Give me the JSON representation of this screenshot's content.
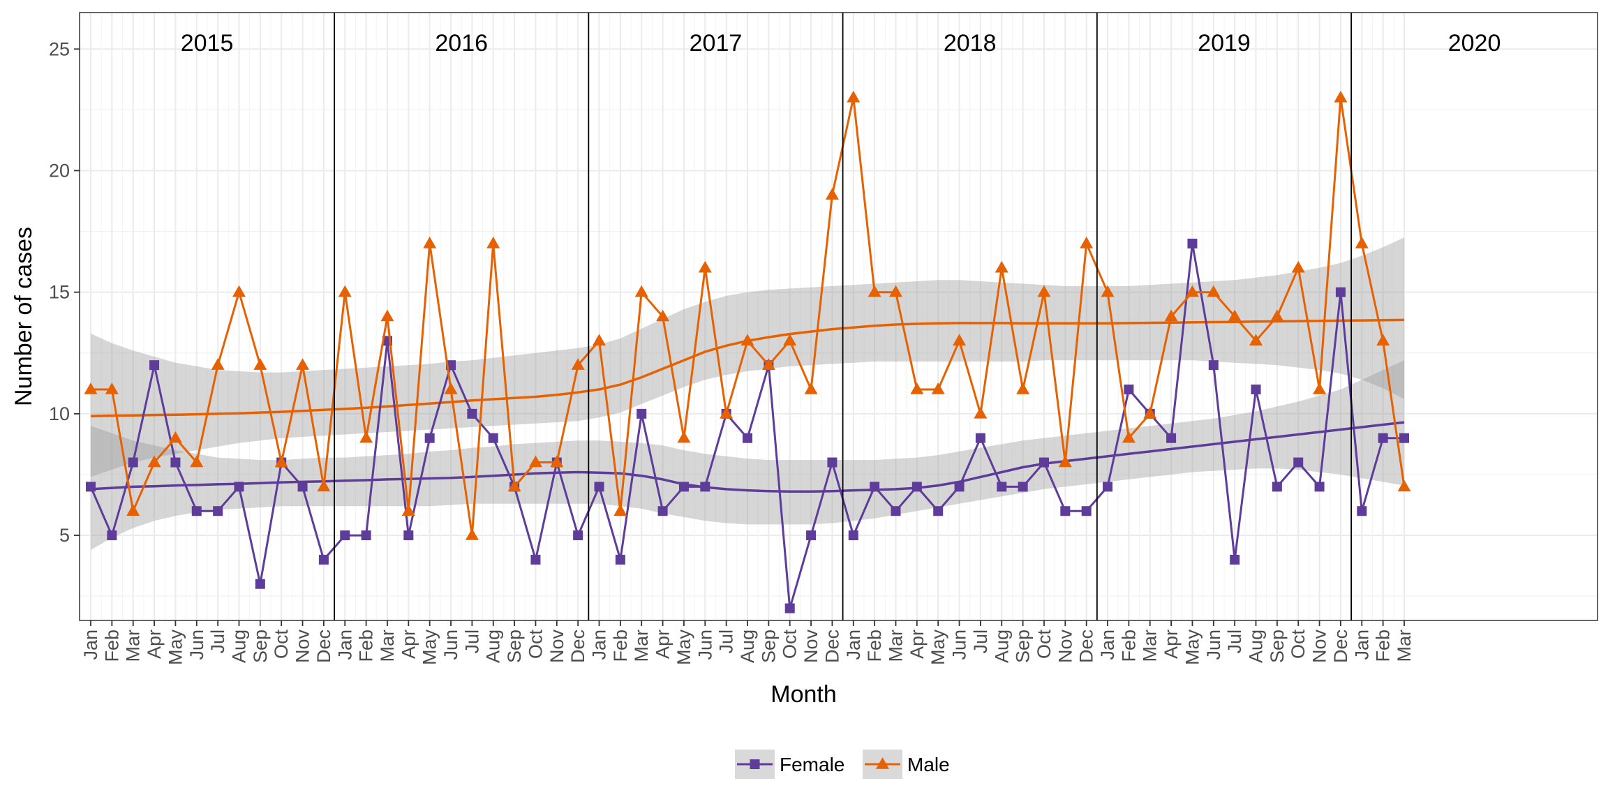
{
  "chart_data": {
    "type": "line",
    "title": "",
    "xlabel": "Month",
    "ylabel": "Number of cases",
    "ylim": [
      1.5,
      26.5
    ],
    "yticks": [
      5,
      10,
      15,
      20,
      25
    ],
    "grid": true,
    "legend_position": "bottom",
    "years": [
      {
        "label": "2015",
        "months": 12
      },
      {
        "label": "2016",
        "months": 12
      },
      {
        "label": "2017",
        "months": 12
      },
      {
        "label": "2018",
        "months": 12
      },
      {
        "label": "2019",
        "months": 12
      },
      {
        "label": "2020",
        "months": 3
      }
    ],
    "month_labels": [
      "Jan",
      "Feb",
      "Mar",
      "Apr",
      "May",
      "Jun",
      "Jul",
      "Aug",
      "Sep",
      "Oct",
      "Nov",
      "Dec"
    ],
    "categories": [
      "Jan",
      "Feb",
      "Mar",
      "Apr",
      "May",
      "Jun",
      "Jul",
      "Aug",
      "Sep",
      "Oct",
      "Nov",
      "Dec",
      "Jan",
      "Feb",
      "Mar",
      "Apr",
      "May",
      "Jun",
      "Jul",
      "Aug",
      "Sep",
      "Oct",
      "Nov",
      "Dec",
      "Jan",
      "Feb",
      "Mar",
      "Apr",
      "May",
      "Jun",
      "Jul",
      "Aug",
      "Sep",
      "Oct",
      "Nov",
      "Dec",
      "Jan",
      "Feb",
      "Mar",
      "Apr",
      "May",
      "Jun",
      "Jul",
      "Aug",
      "Sep",
      "Oct",
      "Nov",
      "Dec",
      "Jan",
      "Feb",
      "Mar",
      "Apr",
      "May",
      "Jun",
      "Jul",
      "Aug",
      "Sep",
      "Oct",
      "Nov",
      "Dec",
      "Jan",
      "Feb",
      "Mar"
    ],
    "series": [
      {
        "name": "Female",
        "color": "#5e3c99",
        "marker": "square",
        "values": [
          7,
          5,
          8,
          12,
          8,
          6,
          6,
          7,
          3,
          8,
          7,
          4,
          5,
          5,
          13,
          5,
          9,
          12,
          10,
          9,
          7,
          4,
          8,
          5,
          7,
          4,
          10,
          6,
          7,
          7,
          10,
          9,
          12,
          2,
          5,
          8,
          5,
          7,
          6,
          7,
          6,
          7,
          9,
          7,
          7,
          8,
          6,
          6,
          7,
          11,
          10,
          9,
          17,
          12,
          4,
          11,
          7,
          8,
          7,
          15,
          6,
          9,
          9
        ],
        "trend": [
          6.9,
          6.95,
          7.0,
          7.02,
          7.05,
          7.07,
          7.1,
          7.12,
          7.15,
          7.18,
          7.2,
          7.22,
          7.25,
          7.27,
          7.3,
          7.32,
          7.34,
          7.36,
          7.4,
          7.45,
          7.5,
          7.55,
          7.58,
          7.6,
          7.58,
          7.55,
          7.45,
          7.3,
          7.1,
          6.98,
          6.9,
          6.85,
          6.82,
          6.8,
          6.8,
          6.82,
          6.85,
          6.87,
          6.9,
          6.95,
          7.05,
          7.2,
          7.4,
          7.6,
          7.8,
          7.95,
          8.05,
          8.15,
          8.25,
          8.35,
          8.45,
          8.55,
          8.65,
          8.75,
          8.85,
          8.95,
          9.05,
          9.15,
          9.25,
          9.35,
          9.45,
          9.55,
          9.65
        ],
        "band_lower": [
          4.4,
          4.9,
          5.3,
          5.6,
          5.8,
          5.95,
          6.05,
          6.1,
          6.15,
          6.2,
          6.2,
          6.2,
          6.2,
          6.2,
          6.2,
          6.2,
          6.2,
          6.25,
          6.3,
          6.3,
          6.3,
          6.3,
          6.3,
          6.3,
          6.3,
          6.2,
          6.1,
          5.9,
          5.75,
          5.6,
          5.5,
          5.45,
          5.45,
          5.45,
          5.45,
          5.5,
          5.6,
          5.7,
          5.85,
          6.0,
          6.15,
          6.3,
          6.45,
          6.6,
          6.75,
          6.9,
          7.0,
          7.1,
          7.2,
          7.3,
          7.4,
          7.5,
          7.6,
          7.65,
          7.7,
          7.75,
          7.75,
          7.7,
          7.6,
          7.5,
          7.35,
          7.2,
          7.05
        ],
        "band_upper": [
          9.5,
          9.2,
          8.9,
          8.7,
          8.5,
          8.35,
          8.2,
          8.15,
          8.1,
          8.1,
          8.15,
          8.2,
          8.2,
          8.25,
          8.3,
          8.35,
          8.45,
          8.5,
          8.6,
          8.65,
          8.75,
          8.8,
          8.85,
          8.9,
          8.9,
          8.85,
          8.8,
          8.7,
          8.5,
          8.35,
          8.25,
          8.15,
          8.1,
          8.1,
          8.1,
          8.1,
          8.1,
          8.1,
          8.15,
          8.2,
          8.3,
          8.45,
          8.6,
          8.75,
          8.9,
          9.0,
          9.1,
          9.2,
          9.3,
          9.4,
          9.5,
          9.6,
          9.7,
          9.8,
          9.95,
          10.1,
          10.3,
          10.5,
          10.75,
          11.0,
          11.4,
          11.8,
          12.2
        ]
      },
      {
        "name": "Male",
        "color": "#e66101",
        "marker": "triangle",
        "values": [
          11,
          11,
          6,
          8,
          9,
          8,
          12,
          15,
          12,
          8,
          12,
          7,
          15,
          9,
          14,
          6,
          17,
          11,
          5,
          17,
          7,
          8,
          8,
          12,
          13,
          6,
          15,
          14,
          9,
          16,
          10,
          13,
          12,
          13,
          11,
          19,
          23,
          15,
          15,
          11,
          11,
          13,
          10,
          16,
          11,
          15,
          8,
          17,
          15,
          9,
          10,
          14,
          15,
          15,
          14,
          13,
          14,
          16,
          11,
          23,
          17,
          13,
          7
        ],
        "trend": [
          9.9,
          9.92,
          9.93,
          9.95,
          9.96,
          9.98,
          10.0,
          10.02,
          10.05,
          10.08,
          10.12,
          10.16,
          10.2,
          10.25,
          10.3,
          10.36,
          10.42,
          10.48,
          10.55,
          10.6,
          10.65,
          10.7,
          10.78,
          10.88,
          11.0,
          11.2,
          11.5,
          11.85,
          12.2,
          12.55,
          12.8,
          13.0,
          13.15,
          13.28,
          13.38,
          13.48,
          13.55,
          13.62,
          13.67,
          13.7,
          13.72,
          13.73,
          13.73,
          13.73,
          13.72,
          13.72,
          13.72,
          13.72,
          13.72,
          13.73,
          13.74,
          13.75,
          13.76,
          13.77,
          13.78,
          13.79,
          13.8,
          13.81,
          13.82,
          13.83,
          13.84,
          13.85,
          13.86
        ],
        "band_lower": [
          7.4,
          7.7,
          8.0,
          8.2,
          8.35,
          8.5,
          8.65,
          8.8,
          8.9,
          9.0,
          9.05,
          9.1,
          9.15,
          9.2,
          9.25,
          9.3,
          9.35,
          9.4,
          9.45,
          9.5,
          9.55,
          9.6,
          9.65,
          9.7,
          9.85,
          10.05,
          10.4,
          10.75,
          11.1,
          11.4,
          11.6,
          11.75,
          11.85,
          11.95,
          12.0,
          12.05,
          12.1,
          12.15,
          12.15,
          12.15,
          12.15,
          12.15,
          12.15,
          12.15,
          12.15,
          12.2,
          12.2,
          12.2,
          12.2,
          12.2,
          12.2,
          12.2,
          12.2,
          12.15,
          12.1,
          12.05,
          12.0,
          11.9,
          11.8,
          11.65,
          11.4,
          11.05,
          10.6
        ],
        "band_upper": [
          13.3,
          12.9,
          12.6,
          12.35,
          12.1,
          11.95,
          11.8,
          11.75,
          11.7,
          11.7,
          11.75,
          11.8,
          11.85,
          11.9,
          11.95,
          12.0,
          12.05,
          12.15,
          12.2,
          12.3,
          12.4,
          12.5,
          12.6,
          12.7,
          12.85,
          13.1,
          13.5,
          13.9,
          14.3,
          14.6,
          14.85,
          15.0,
          15.1,
          15.15,
          15.2,
          15.25,
          15.3,
          15.35,
          15.4,
          15.45,
          15.5,
          15.5,
          15.45,
          15.4,
          15.35,
          15.3,
          15.25,
          15.25,
          15.25,
          15.25,
          15.3,
          15.35,
          15.4,
          15.45,
          15.5,
          15.6,
          15.7,
          15.85,
          16.0,
          16.2,
          16.5,
          16.85,
          17.25
        ]
      }
    ]
  }
}
